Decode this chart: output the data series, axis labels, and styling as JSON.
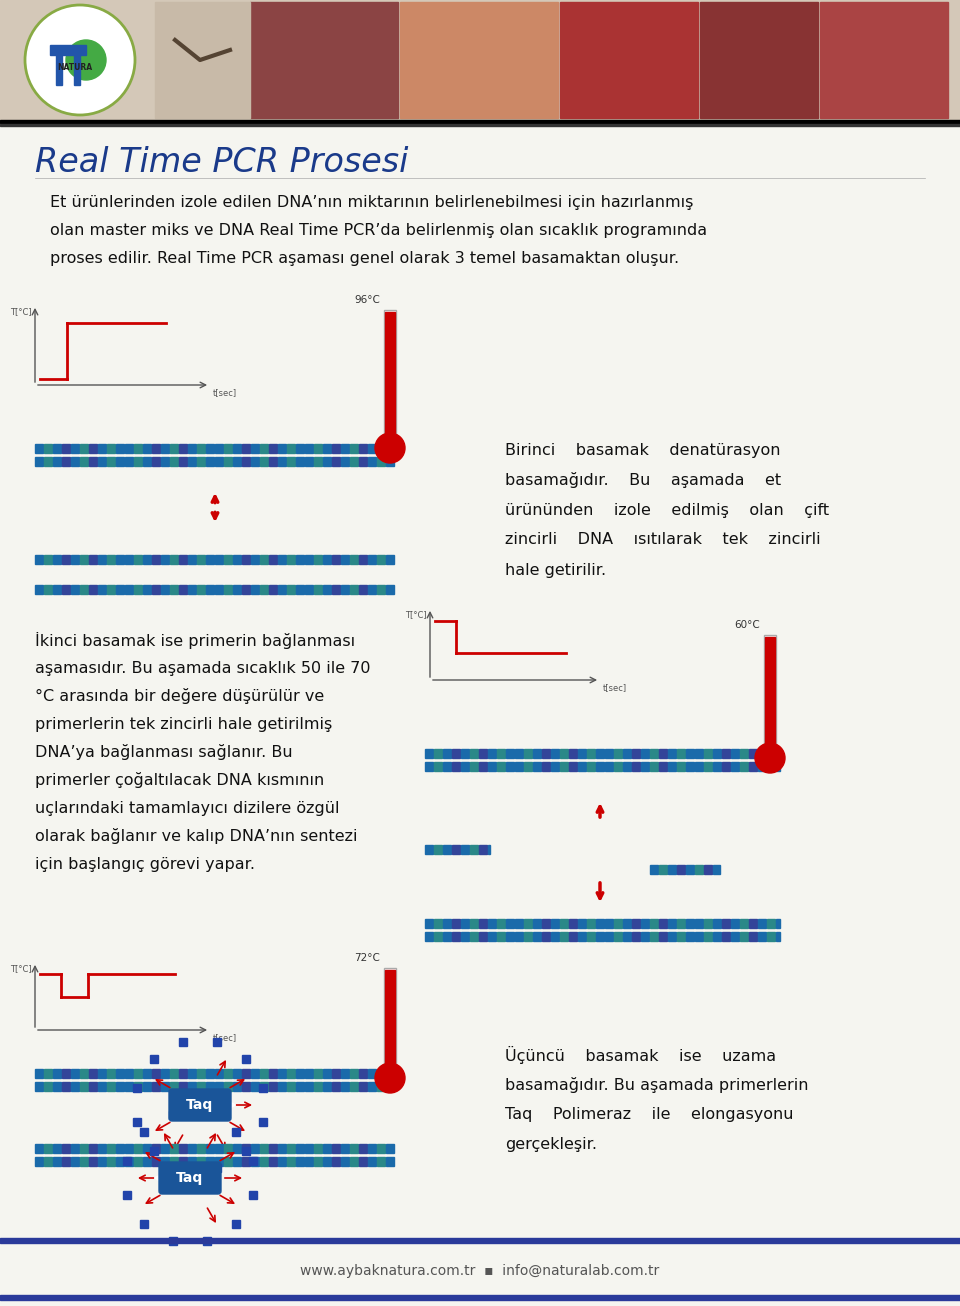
{
  "title": "Real Time PCR Prosesi",
  "title_color": "#1a3a8a",
  "bg_color": "#f5f5f0",
  "border_color": "#2a3a9a",
  "footer_bar_color": "#2a3a9a",
  "footer_text": "www.aybaknatura.com.tr  ▪  info@naturalab.com.tr",
  "footer_text_color": "#555555",
  "text_color": "#111111",
  "dna_color1": "#1a6aaa",
  "dna_color2": "#2a8888",
  "dna_color3": "#334499",
  "arrow_color": "#cc0000",
  "taq_color": "#1a5599",
  "graph_axis_color": "#555555",
  "graph_line_color": "#cc0000",
  "thermometer_color": "#cc0000",
  "separator_color": "#333333",
  "header_bg": "#f0ede8",
  "intro_text_line1": "Et ürünlerinden izole edilen DNA’nın miktarının belirlenebilmesi için hazırlanmış",
  "intro_text_line2": "olan master miks ve DNA Real Time PCR’da belirlenmiş olan sıcaklık programında",
  "intro_text_line3": "proses edilir. Real Time PCR aşaması genel olarak 3 temel basamaktan oluşur.",
  "s1_text_line1": "Birinci    basamak    denatürasyon",
  "s1_text_line2": "basamağıdır.    Bu    aşamada    et",
  "s1_text_line3": "ürününden    izole    edilmiş    olan    çift",
  "s1_text_line4": "zincirli    DNA    ısıtılarak    tek    zincirli",
  "s1_text_line5": "hale getirilir.",
  "s2_text_line1": "İkinci basamak ise primerin bağlanması",
  "s2_text_line2": "aşamasıdır. Bu aşamada sıcaklık 50 ile 70",
  "s2_text_line3": "°C arasında bir değere düşürülür ve",
  "s2_text_line4": "primerlerin tek zincirli hale getirilmiş",
  "s2_text_line5": "DNA’ya bağlanması sağlanır. Bu",
  "s2_text_line6": "primerler çoğaltılacak DNA kısmının",
  "s2_text_line7": "uçlarındaki tamamlayıcı dizilere özgül",
  "s2_text_line8": "olarak bağlanır ve kalıp DNA’nın sentezi",
  "s2_text_line9": "için başlangıç görevi yapar.",
  "s3_text_line1": "Üçüncü    basamak    ise    uzama",
  "s3_text_line2": "basamağıdır. Bu aşamada primerlerin",
  "s3_text_line3": "Taq    Polimeraz    ile    elongasyonu",
  "s3_text_line4": "gerçekleşir."
}
